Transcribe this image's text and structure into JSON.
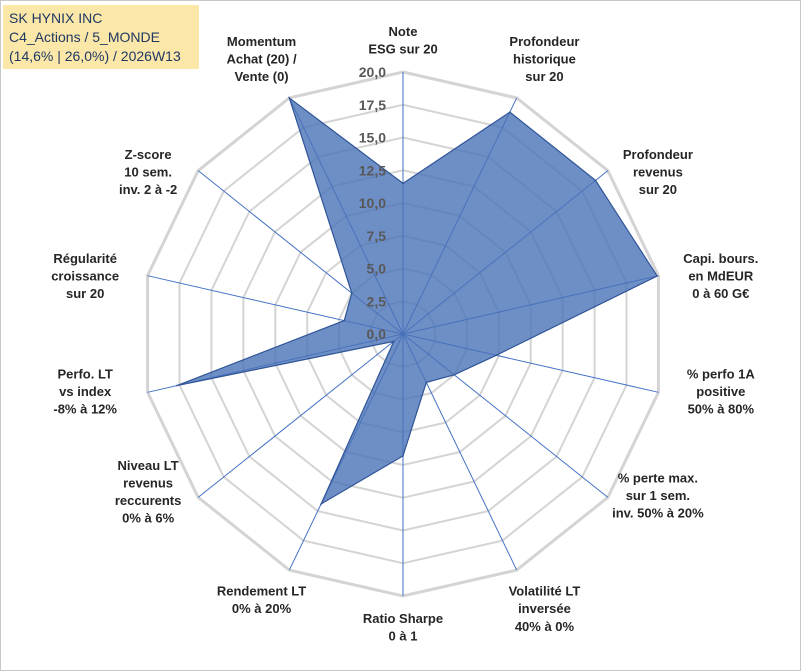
{
  "title_box": {
    "line1": "SK HYNIX INC",
    "line2": "C4_Actions / 5_MONDE",
    "line3": "(14,6% | 26,0%) / 2026W13"
  },
  "chart_data": {
    "type": "radar",
    "r_min": 0,
    "r_max": 20,
    "r_step": 2.5,
    "r_tick_labels": [
      "0,0",
      "2,5",
      "5,0",
      "7,5",
      "10,0",
      "12,5",
      "15,0",
      "17,5",
      "20,0"
    ],
    "series": [
      {
        "name": "SK HYNIX INC",
        "color": "#4a72b8",
        "values": [
          11.5,
          18.8,
          18.8,
          19.9,
          7.3,
          5.0,
          4.1,
          9.3,
          14.4,
          0.9,
          17.7,
          4.6,
          5.0,
          20.0
        ]
      }
    ],
    "axes": [
      {
        "lines": [
          "Note",
          "ESG sur 20"
        ]
      },
      {
        "lines": [
          "Profondeur",
          "historique",
          "sur 20"
        ]
      },
      {
        "lines": [
          "Profondeur",
          "revenus",
          "sur 20"
        ]
      },
      {
        "lines": [
          "Capi. bours.",
          "en MdEUR",
          "0 à 60 G€"
        ]
      },
      {
        "lines": [
          "% perfo 1A",
          "positive",
          "50% à 80%"
        ]
      },
      {
        "lines": [
          "% perte max.",
          "sur 1 sem.",
          "inv. 50% à 20%"
        ]
      },
      {
        "lines": [
          "Volatilité LT",
          "inversée",
          "40% à 0%"
        ]
      },
      {
        "lines": [
          "Ratio Sharpe",
          "0 à 1"
        ]
      },
      {
        "lines": [
          "Rendement LT",
          "0% à 20%"
        ]
      },
      {
        "lines": [
          "Niveau LT",
          "revenus",
          "reccurents",
          "0% à 6%"
        ]
      },
      {
        "lines": [
          "Perfo. LT",
          "vs index",
          "-8% à 12%"
        ]
      },
      {
        "lines": [
          "Régularité",
          "croissance",
          "sur 20"
        ]
      },
      {
        "lines": [
          "Z-score",
          "10 sem.",
          "inv. 2 à -2"
        ]
      },
      {
        "lines": [
          "Momentum",
          "Achat (20) /",
          "Vente (0)"
        ]
      }
    ]
  }
}
